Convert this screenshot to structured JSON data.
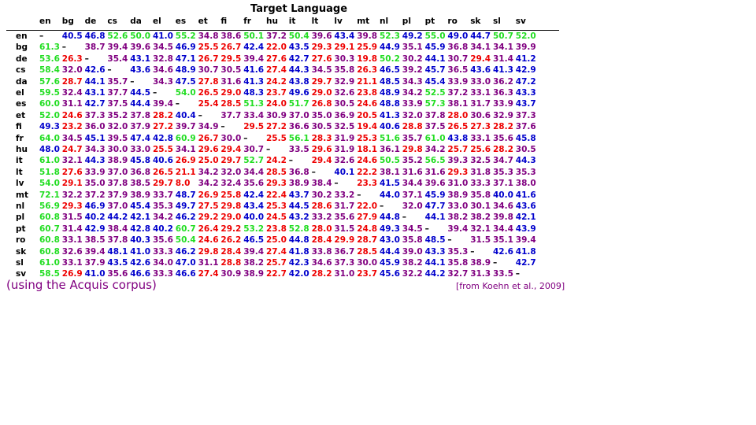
{
  "title": "Target Language",
  "note": "(using the Acquis corpus)",
  "source": "[from Koehn et al., 2009]",
  "colors": {
    "green": "#22dd22",
    "blue": "#0000cc",
    "purple": "#800080",
    "red": "#ee0000",
    "black": "#000000"
  },
  "chart_data": {
    "type": "table",
    "title": "Target Language",
    "columns": [
      "en",
      "bg",
      "de",
      "cs",
      "da",
      "el",
      "es",
      "et",
      "fi",
      "fr",
      "hu",
      "it",
      "lt",
      "lv",
      "mt",
      "nl",
      "pl",
      "pt",
      "ro",
      "sk",
      "sl",
      "sv"
    ],
    "rows": [
      {
        "label": "en",
        "values": [
          "–",
          "40.5",
          "46.8",
          "52.6",
          "50.0",
          "41.0",
          "55.2",
          "34.8",
          "38.6",
          "50.1",
          "37.2",
          "50.4",
          "39.6",
          "43.4",
          "39.8",
          "52.3",
          "49.2",
          "55.0",
          "49.0",
          "44.7",
          "50.7",
          "52.0"
        ]
      },
      {
        "label": "bg",
        "values": [
          "61.3",
          "–",
          "38.7",
          "39.4",
          "39.6",
          "34.5",
          "46.9",
          "25.5",
          "26.7",
          "42.4",
          "22.0",
          "43.5",
          "29.3",
          "29.1",
          "25.9",
          "44.9",
          "35.1",
          "45.9",
          "36.8",
          "34.1",
          "34.1",
          "39.9"
        ]
      },
      {
        "label": "de",
        "values": [
          "53.6",
          "26.3",
          "–",
          "35.4",
          "43.1",
          "32.8",
          "47.1",
          "26.7",
          "29.5",
          "39.4",
          "27.6",
          "42.7",
          "27.6",
          "30.3",
          "19.8",
          "50.2",
          "30.2",
          "44.1",
          "30.7",
          "29.4",
          "31.4",
          "41.2"
        ]
      },
      {
        "label": "cs",
        "values": [
          "58.4",
          "32.0",
          "42.6",
          "–",
          "43.6",
          "34.6",
          "48.9",
          "30.7",
          "30.5",
          "41.6",
          "27.4",
          "44.3",
          "34.5",
          "35.8",
          "26.3",
          "46.5",
          "39.2",
          "45.7",
          "36.5",
          "43.6",
          "41.3",
          "42.9"
        ]
      },
      {
        "label": "da",
        "values": [
          "57.6",
          "28.7",
          "44.1",
          "35.7",
          "–",
          "34.3",
          "47.5",
          "27.8",
          "31.6",
          "41.3",
          "24.2",
          "43.8",
          "29.7",
          "32.9",
          "21.1",
          "48.5",
          "34.3",
          "45.4",
          "33.9",
          "33.0",
          "36.2",
          "47.2"
        ]
      },
      {
        "label": "el",
        "values": [
          "59.5",
          "32.4",
          "43.1",
          "37.7",
          "44.5",
          "–",
          "54.0",
          "26.5",
          "29.0",
          "48.3",
          "23.7",
          "49.6",
          "29.0",
          "32.6",
          "23.8",
          "48.9",
          "34.2",
          "52.5",
          "37.2",
          "33.1",
          "36.3",
          "43.3"
        ]
      },
      {
        "label": "es",
        "values": [
          "60.0",
          "31.1",
          "42.7",
          "37.5",
          "44.4",
          "39.4",
          "–",
          "25.4",
          "28.5",
          "51.3",
          "24.0",
          "51.7",
          "26.8",
          "30.5",
          "24.6",
          "48.8",
          "33.9",
          "57.3",
          "38.1",
          "31.7",
          "33.9",
          "43.7"
        ]
      },
      {
        "label": "et",
        "values": [
          "52.0",
          "24.6",
          "37.3",
          "35.2",
          "37.8",
          "28.2",
          "40.4",
          "–",
          "37.7",
          "33.4",
          "30.9",
          "37.0",
          "35.0",
          "36.9",
          "20.5",
          "41.3",
          "32.0",
          "37.8",
          "28.0",
          "30.6",
          "32.9",
          "37.3"
        ]
      },
      {
        "label": "fi",
        "values": [
          "49.3",
          "23.2",
          "36.0",
          "32.0",
          "37.9",
          "27.2",
          "39.7",
          "34.9",
          "–",
          "29.5",
          "27.2",
          "36.6",
          "30.5",
          "32.5",
          "19.4",
          "40.6",
          "28.8",
          "37.5",
          "26.5",
          "27.3",
          "28.2",
          "37.6"
        ]
      },
      {
        "label": "fr",
        "values": [
          "64.0",
          "34.5",
          "45.1",
          "39.5",
          "47.4",
          "42.8",
          "60.9",
          "26.7",
          "30.0",
          "–",
          "25.5",
          "56.1",
          "28.3",
          "31.9",
          "25.3",
          "51.6",
          "35.7",
          "61.0",
          "43.8",
          "33.1",
          "35.6",
          "45.8"
        ]
      },
      {
        "label": "hu",
        "values": [
          "48.0",
          "24.7",
          "34.3",
          "30.0",
          "33.0",
          "25.5",
          "34.1",
          "29.6",
          "29.4",
          "30.7",
          "–",
          "33.5",
          "29.6",
          "31.9",
          "18.1",
          "36.1",
          "29.8",
          "34.2",
          "25.7",
          "25.6",
          "28.2",
          "30.5"
        ]
      },
      {
        "label": "it",
        "values": [
          "61.0",
          "32.1",
          "44.3",
          "38.9",
          "45.8",
          "40.6",
          "26.9",
          "25.0",
          "29.7",
          "52.7",
          "24.2",
          "–",
          "29.4",
          "32.6",
          "24.6",
          "50.5",
          "35.2",
          "56.5",
          "39.3",
          "32.5",
          "34.7",
          "44.3"
        ]
      },
      {
        "label": "lt",
        "values": [
          "51.8",
          "27.6",
          "33.9",
          "37.0",
          "36.8",
          "26.5",
          "21.1",
          "34.2",
          "32.0",
          "34.4",
          "28.5",
          "36.8",
          "–",
          "40.1",
          "22.2",
          "38.1",
          "31.6",
          "31.6",
          "29.3",
          "31.8",
          "35.3",
          "35.3"
        ]
      },
      {
        "label": "lv",
        "values": [
          "54.0",
          "29.1",
          "35.0",
          "37.8",
          "38.5",
          "29.7",
          "8.0",
          "34.2",
          "32.4",
          "35.6",
          "29.3",
          "38.9",
          "38.4",
          "–",
          "23.3",
          "41.5",
          "34.4",
          "39.6",
          "31.0",
          "33.3",
          "37.1",
          "38.0"
        ]
      },
      {
        "label": "mt",
        "values": [
          "72.1",
          "32.2",
          "37.2",
          "37.9",
          "38.9",
          "33.7",
          "48.7",
          "26.9",
          "25.8",
          "42.4",
          "22.4",
          "43.7",
          "30.2",
          "33.2",
          "–",
          "44.0",
          "37.1",
          "45.9",
          "38.9",
          "35.8",
          "40.0",
          "41.6"
        ]
      },
      {
        "label": "nl",
        "values": [
          "56.9",
          "29.3",
          "46.9",
          "37.0",
          "45.4",
          "35.3",
          "49.7",
          "27.5",
          "29.8",
          "43.4",
          "25.3",
          "44.5",
          "28.6",
          "31.7",
          "22.0",
          "–",
          "32.0",
          "47.7",
          "33.0",
          "30.1",
          "34.6",
          "43.6"
        ]
      },
      {
        "label": "pl",
        "values": [
          "60.8",
          "31.5",
          "40.2",
          "44.2",
          "42.1",
          "34.2",
          "46.2",
          "29.2",
          "29.0",
          "40.0",
          "24.5",
          "43.2",
          "33.2",
          "35.6",
          "27.9",
          "44.8",
          "–",
          "44.1",
          "38.2",
          "38.2",
          "39.8",
          "42.1"
        ]
      },
      {
        "label": "pt",
        "values": [
          "60.7",
          "31.4",
          "42.9",
          "38.4",
          "42.8",
          "40.2",
          "60.7",
          "26.4",
          "29.2",
          "53.2",
          "23.8",
          "52.8",
          "28.0",
          "31.5",
          "24.8",
          "49.3",
          "34.5",
          "–",
          "39.4",
          "32.1",
          "34.4",
          "43.9"
        ]
      },
      {
        "label": "ro",
        "values": [
          "60.8",
          "33.1",
          "38.5",
          "37.8",
          "40.3",
          "35.6",
          "50.4",
          "24.6",
          "26.2",
          "46.5",
          "25.0",
          "44.8",
          "28.4",
          "29.9",
          "28.7",
          "43.0",
          "35.8",
          "48.5",
          "–",
          "31.5",
          "35.1",
          "39.4"
        ]
      },
      {
        "label": "sk",
        "values": [
          "60.8",
          "32.6",
          "39.4",
          "48.1",
          "41.0",
          "33.3",
          "46.2",
          "29.8",
          "28.4",
          "39.4",
          "27.4",
          "41.8",
          "33.8",
          "36.7",
          "28.5",
          "44.4",
          "39.0",
          "43.3",
          "35.3",
          "–",
          "42.6",
          "41.8"
        ]
      },
      {
        "label": "sl",
        "values": [
          "61.0",
          "33.1",
          "37.9",
          "43.5",
          "42.6",
          "34.0",
          "47.0",
          "31.1",
          "28.8",
          "38.2",
          "25.7",
          "42.3",
          "34.6",
          "37.3",
          "30.0",
          "45.9",
          "38.2",
          "44.1",
          "35.8",
          "38.9",
          "–",
          "42.7"
        ]
      },
      {
        "label": "sv",
        "values": [
          "58.5",
          "26.9",
          "41.0",
          "35.6",
          "46.6",
          "33.3",
          "46.6",
          "27.4",
          "30.9",
          "38.9",
          "22.7",
          "42.0",
          "28.2",
          "31.0",
          "23.7",
          "45.6",
          "32.2",
          "44.2",
          "32.7",
          "31.3",
          "33.5",
          "–"
        ]
      }
    ]
  }
}
